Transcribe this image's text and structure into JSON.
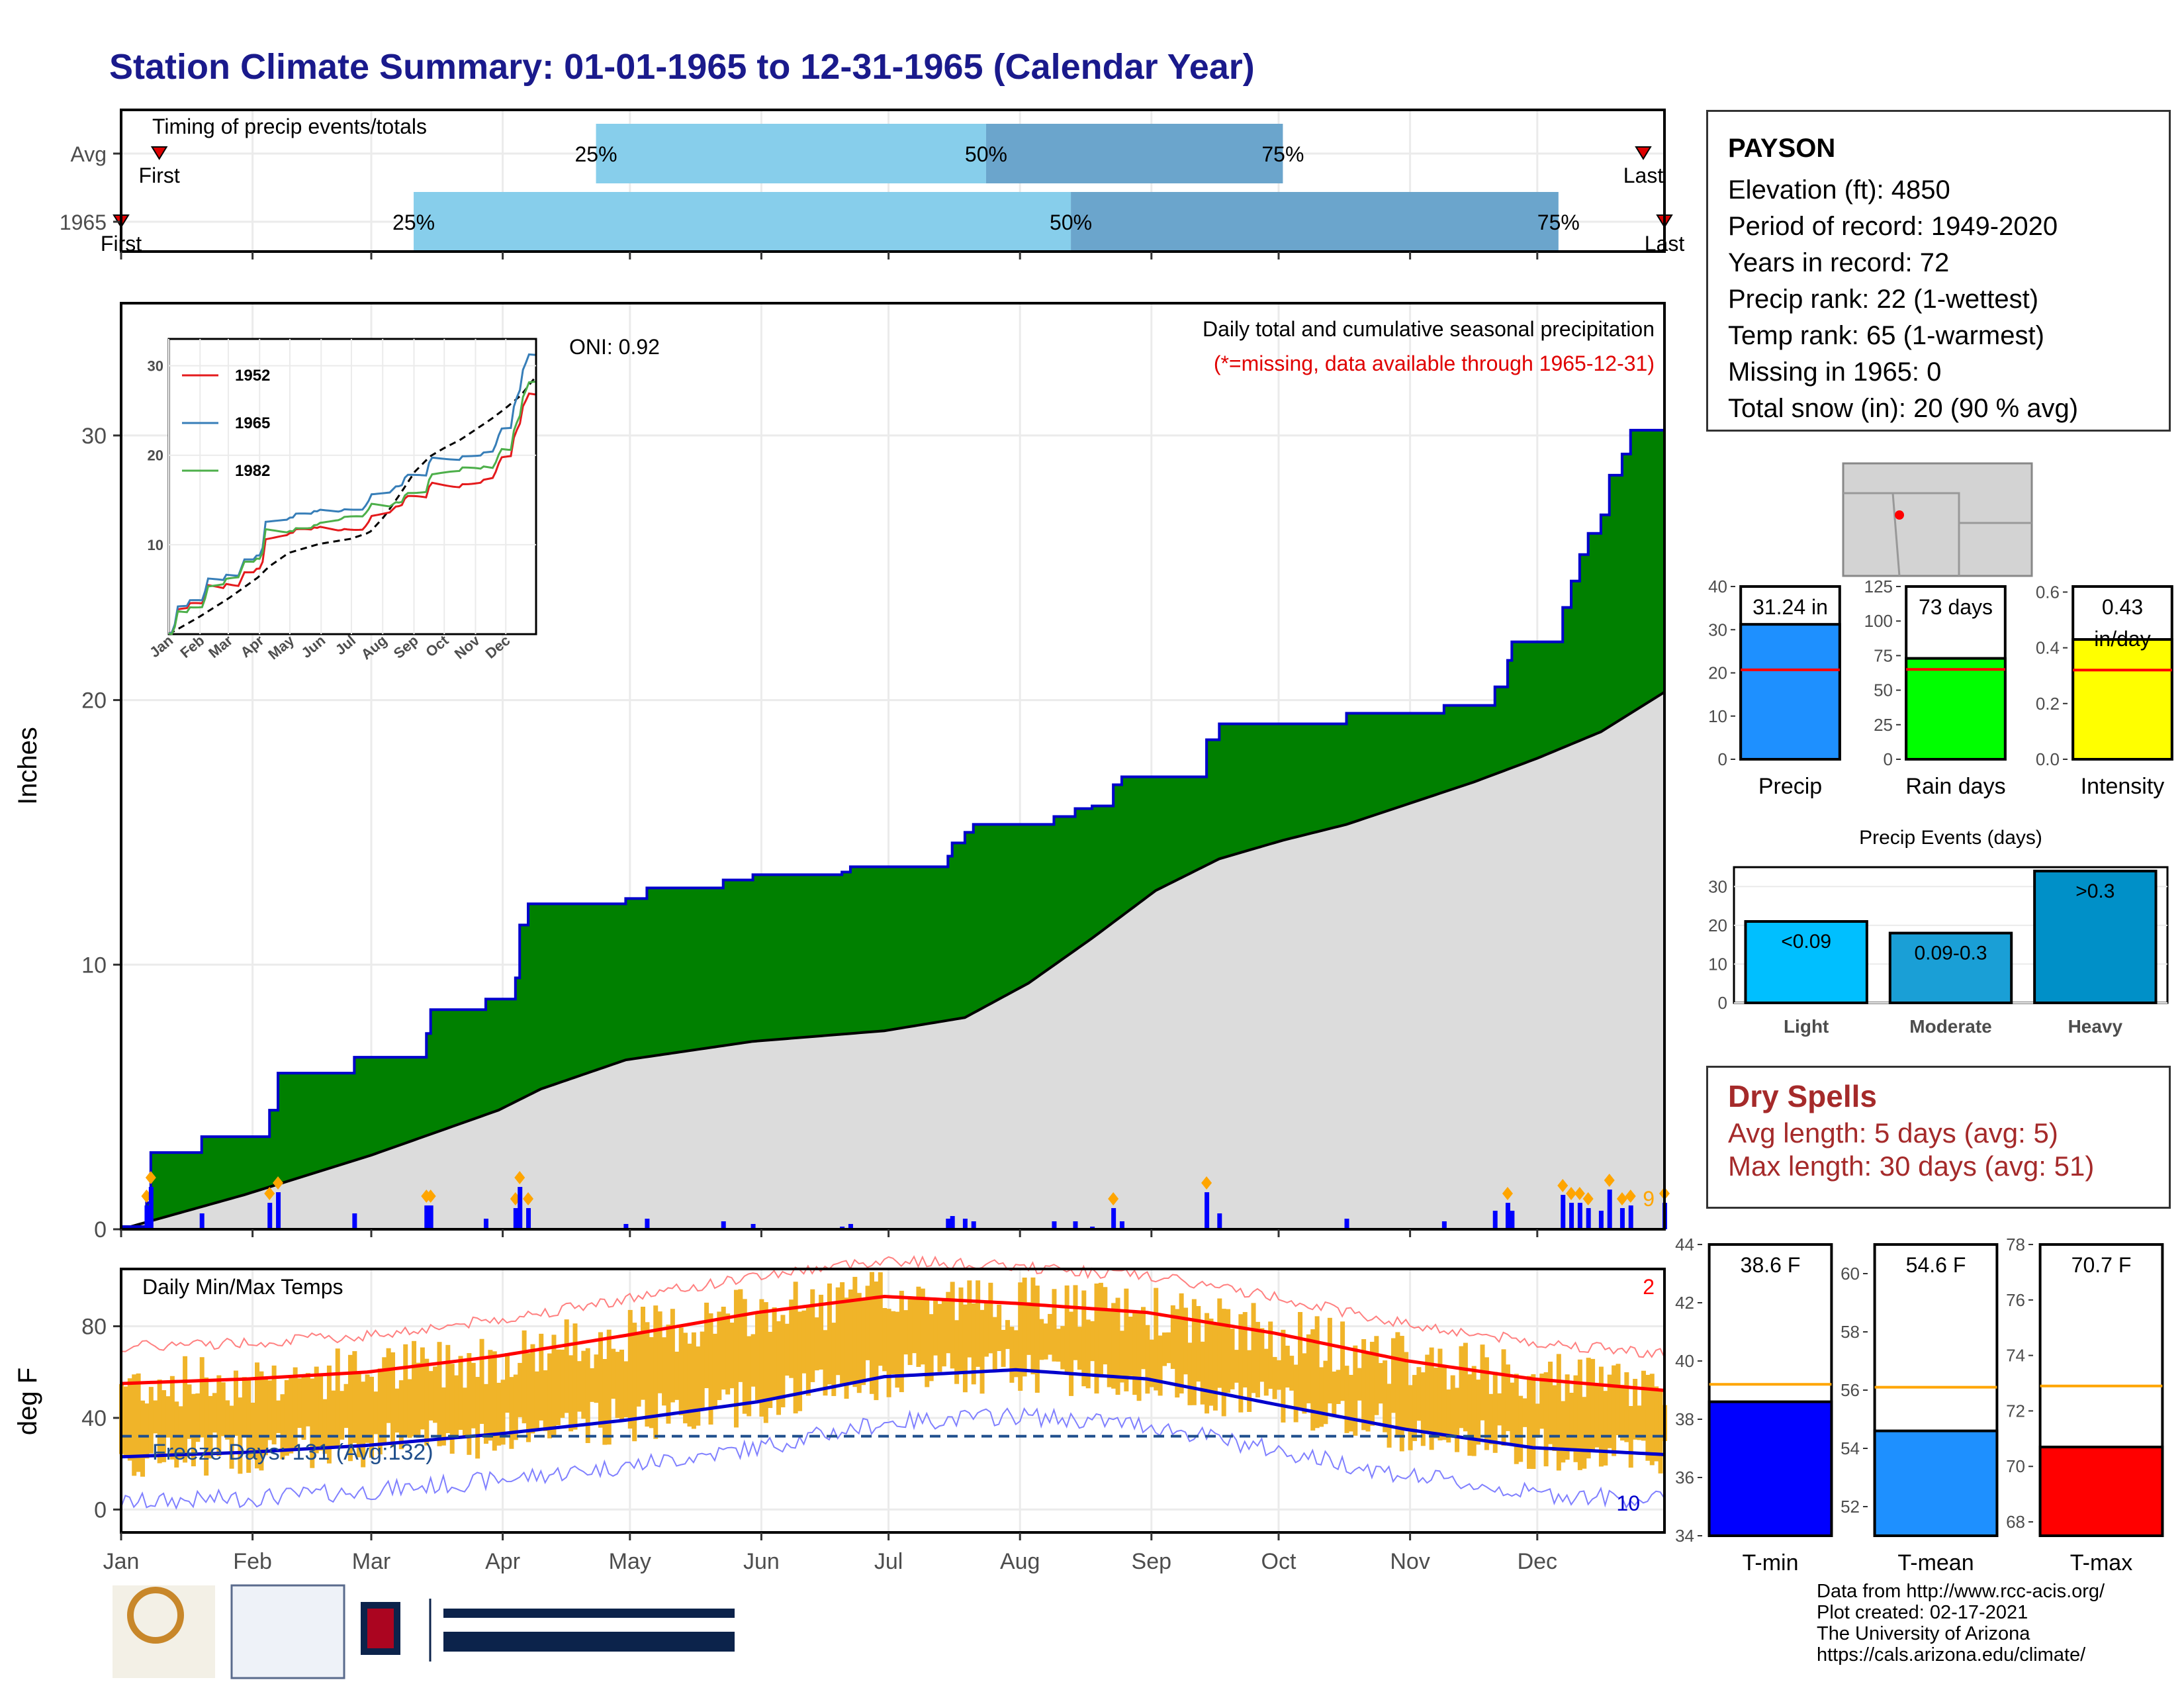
{
  "header": {
    "title": "Station Climate Summary: 01-01-1965 to 12-31-1965 (Calendar Year)"
  },
  "timing_panel": {
    "title": "Timing of precip events/totals",
    "rows": [
      {
        "label": "Avg",
        "first_day": 10,
        "last_day": 360,
        "p25": 113,
        "p50": 205,
        "p75": 275,
        "first_label": "First",
        "last_label": "Last"
      },
      {
        "label": "1965",
        "first_day": 1,
        "last_day": 365,
        "p25": 70,
        "p50": 225,
        "p75": 340,
        "first_label": "First",
        "last_label": "Last"
      }
    ],
    "pct_labels": [
      "25%",
      "50%",
      "75%"
    ],
    "colors": {
      "early": "#87ceeb",
      "late": "#6ba5cc",
      "marker": "#dd0000"
    }
  },
  "info": {
    "station": "PAYSON",
    "lines": [
      "Elevation (ft): 4850",
      "Period of record: 1949-2020",
      "Years in record: 72",
      "Precip rank: 22 (1-wettest)",
      "Temp rank: 65 (1-warmest)",
      "Missing in 1965: 0",
      "Total snow (in): 20 (90 % avg)"
    ]
  },
  "precip_panel": {
    "ylabel": "Inches",
    "oni": "ONI: 0.92",
    "subtitle": "Daily total and cumulative seasonal precipitation",
    "missing_note": "(*=missing, data available through 1965-12-31)",
    "corner_count": "9",
    "colors": {
      "cum": "#008000",
      "normal": "#dcdcdc",
      "outline": "#0000cc",
      "daily": "#0000ff",
      "extreme": "#ffa500"
    }
  },
  "inset": {
    "years": [
      "1952",
      "1965",
      "1982"
    ],
    "colors": [
      "#e41a1c",
      "#377eb8",
      "#4daf4a"
    ]
  },
  "temp_panel": {
    "ylabel": "deg F",
    "title": "Daily Min/Max Temps",
    "freeze_text": "Freeze Days: 131 (Avg:132)",
    "hot_count": "2",
    "cold_count": "10",
    "colors": {
      "bar": "#f0b429",
      "max": "#ff0000",
      "min": "#0000cc"
    }
  },
  "months": [
    "Jan",
    "Feb",
    "Mar",
    "Apr",
    "May",
    "Jun",
    "Jul",
    "Aug",
    "Sep",
    "Oct",
    "Nov",
    "Dec"
  ],
  "bar_panels": {
    "summary": [
      {
        "title": "Precip",
        "value": 31.24,
        "label": "31.24 in",
        "avg": 20.7,
        "ylim": [
          0,
          40
        ],
        "ticks": [
          0,
          10,
          20,
          30,
          40
        ],
        "color": "#1e90ff"
      },
      {
        "title": "Rain days",
        "value": 73,
        "label": "73 days",
        "avg": 65,
        "ylim": [
          0,
          125
        ],
        "ticks": [
          0,
          25,
          50,
          75,
          100,
          125
        ],
        "color": "#00ff00"
      },
      {
        "title": "Intensity",
        "value": 0.43,
        "label": "0.43\nin/day",
        "avg": 0.32,
        "ylim": [
          0,
          0.62
        ],
        "ticks": [
          0.0,
          0.2,
          0.4,
          0.6
        ],
        "color": "#ffff00"
      }
    ],
    "events": {
      "title": "Precip Events (days)",
      "categories": [
        "Light",
        "Moderate",
        "Heavy"
      ],
      "labels": [
        "<0.09",
        "0.09-0.3",
        ">0.3"
      ],
      "values": [
        21,
        18,
        34
      ],
      "ylim": [
        0,
        35
      ],
      "ticks": [
        0,
        10,
        20,
        30
      ],
      "colors": [
        "#00bfff",
        "#1a9fd6",
        "#0090c8"
      ]
    },
    "temps": [
      {
        "title": "T-min",
        "value": 38.6,
        "label": "38.6 F",
        "avg": 39.2,
        "ylim": [
          34,
          44
        ],
        "ticks": [
          34,
          36,
          38,
          40,
          42,
          44
        ],
        "color": "#0000ff"
      },
      {
        "title": "T-mean",
        "value": 54.6,
        "label": "54.6 F",
        "avg": 56.1,
        "ylim": [
          51,
          61
        ],
        "ticks": [
          52,
          54,
          56,
          58,
          60
        ],
        "color": "#1e90ff"
      },
      {
        "title": "T-max",
        "value": 70.7,
        "label": "70.7 F",
        "avg": 72.9,
        "ylim": [
          67.5,
          78
        ],
        "ticks": [
          68,
          70,
          72,
          74,
          76,
          78
        ],
        "color": "#ff0000"
      }
    ]
  },
  "dry_spells": {
    "title": "Dry Spells",
    "avg_line": "Avg length: 5 days (avg: 5)",
    "max_line": "Max length: 30 days (avg: 51)"
  },
  "chart_data": {
    "type": "area",
    "title": "Station Climate Summary: 01-01-1965 to 12-31-1965 (Calendar Year)",
    "ylabel": "Inches",
    "ylim": [
      0,
      35
    ],
    "x_categories": [
      "Jan",
      "Feb",
      "Mar",
      "Apr",
      "May",
      "Jun",
      "Jul",
      "Aug",
      "Sep",
      "Oct",
      "Nov",
      "Dec"
    ],
    "series": [
      {
        "name": "1965",
        "points": [
          [
            1,
            0.1
          ],
          [
            7,
            1.0
          ],
          [
            8,
            2.9
          ],
          [
            15,
            2.9
          ],
          [
            20,
            3.5
          ],
          [
            30,
            3.5
          ],
          [
            36,
            4.5
          ],
          [
            38,
            5.9
          ],
          [
            56,
            6.5
          ],
          [
            72,
            6.5
          ],
          [
            73,
            7.4
          ],
          [
            74,
            8.3
          ],
          [
            87,
            8.7
          ],
          [
            94,
            9.5
          ],
          [
            95,
            11.5
          ],
          [
            97,
            12.3
          ],
          [
            120,
            12.5
          ],
          [
            125,
            12.9
          ],
          [
            143,
            13.2
          ],
          [
            150,
            13.4
          ],
          [
            171,
            13.5
          ],
          [
            173,
            13.7
          ],
          [
            196,
            14.1
          ],
          [
            197,
            14.6
          ],
          [
            200,
            15.0
          ],
          [
            202,
            15.3
          ],
          [
            215,
            15.3
          ],
          [
            221,
            15.6
          ],
          [
            226,
            15.9
          ],
          [
            230,
            16.0
          ],
          [
            235,
            16.8
          ],
          [
            237,
            17.1
          ],
          [
            257,
            18.5
          ],
          [
            260,
            19.1
          ],
          [
            290,
            19.5
          ],
          [
            313,
            19.8
          ],
          [
            325,
            20.5
          ],
          [
            328,
            21.5
          ],
          [
            329,
            22.2
          ],
          [
            341,
            23.5
          ],
          [
            343,
            24.5
          ],
          [
            345,
            25.5
          ],
          [
            347,
            26.3
          ],
          [
            350,
            27.0
          ],
          [
            352,
            28.5
          ],
          [
            355,
            29.3
          ],
          [
            357,
            30.2
          ],
          [
            363,
            30.2
          ],
          [
            365,
            31.2
          ]
        ]
      },
      {
        "name": "normal",
        "points": [
          [
            1,
            0.0
          ],
          [
            30,
            1.3
          ],
          [
            60,
            2.8
          ],
          [
            90,
            4.5
          ],
          [
            100,
            5.3
          ],
          [
            120,
            6.4
          ],
          [
            150,
            7.1
          ],
          [
            181,
            7.5
          ],
          [
            200,
            8.0
          ],
          [
            215,
            9.3
          ],
          [
            230,
            11.0
          ],
          [
            245,
            12.8
          ],
          [
            260,
            14.0
          ],
          [
            275,
            14.7
          ],
          [
            290,
            15.3
          ],
          [
            305,
            16.1
          ],
          [
            320,
            16.9
          ],
          [
            335,
            17.8
          ],
          [
            350,
            18.8
          ],
          [
            365,
            20.3
          ]
        ]
      }
    ],
    "temperature": {
      "ylabel": "deg F",
      "ylim": [
        -10,
        105
      ],
      "normal_max": [
        [
          1,
          55
        ],
        [
          31,
          57
        ],
        [
          59,
          60
        ],
        [
          90,
          67
        ],
        [
          120,
          76
        ],
        [
          151,
          86
        ],
        [
          181,
          93
        ],
        [
          212,
          90
        ],
        [
          243,
          86
        ],
        [
          273,
          77
        ],
        [
          304,
          65
        ],
        [
          334,
          57
        ],
        [
          365,
          52
        ]
      ],
      "normal_min": [
        [
          1,
          23
        ],
        [
          31,
          25
        ],
        [
          59,
          28
        ],
        [
          90,
          33
        ],
        [
          120,
          39
        ],
        [
          151,
          47
        ],
        [
          181,
          58
        ],
        [
          212,
          61
        ],
        [
          243,
          57
        ],
        [
          273,
          46
        ],
        [
          304,
          35
        ],
        [
          334,
          27
        ],
        [
          365,
          24
        ]
      ],
      "freeze_line": 32
    }
  }
}
